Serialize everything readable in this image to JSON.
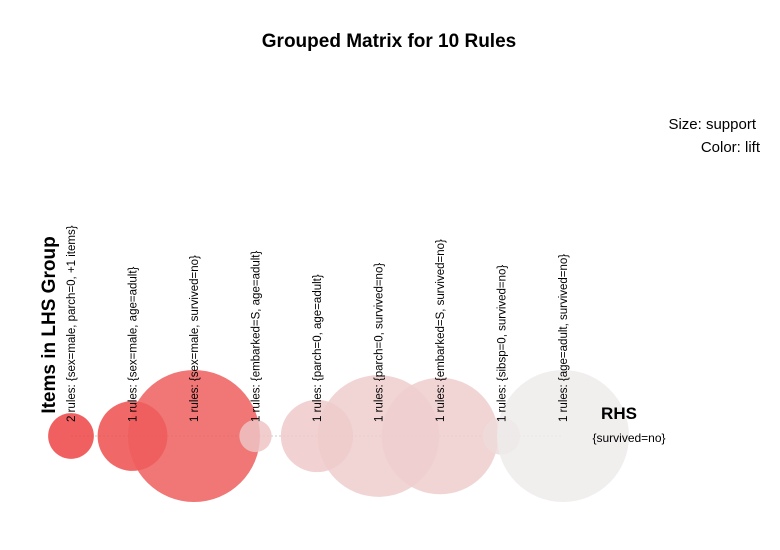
{
  "chart_data": {
    "type": "scatter",
    "title": "Grouped Matrix for 10 Rules",
    "size_legend": "Size: support",
    "color_legend": "Color: lift",
    "ylabel": "Items in LHS Group",
    "rhs_label": "RHS",
    "rhs_items": [
      "{survived=no}"
    ],
    "color_scale": {
      "low": "#eeeeee",
      "high": "#ee4444"
    },
    "groups": [
      {
        "label": "2 rules: {sex=male, parch=0, +1 items}",
        "support": 0.12,
        "lift": 1.0
      },
      {
        "label": "1 rules: {sex=male, age=adult}",
        "support": 0.28,
        "lift": 0.95
      },
      {
        "label": "1 rules: {sex=male, survived=no}",
        "support": 1.0,
        "lift": 0.85
      },
      {
        "label": "1 rules: {embarked=S, age=adult}",
        "support": 0.06,
        "lift": 0.25
      },
      {
        "label": "1 rules: {parch=0, age=adult}",
        "support": 0.3,
        "lift": 0.22
      },
      {
        "label": "1 rules: {parch=0, survived=no}",
        "support": 0.85,
        "lift": 0.2
      },
      {
        "label": "1 rules: {embarked=S, survived=no}",
        "support": 0.78,
        "lift": 0.19
      },
      {
        "label": "1 rules: {sibsp=0, survived=no}",
        "support": 0.08,
        "lift": 0.12
      },
      {
        "label": "1 rules: {age=adult, survived=no}",
        "support": 1.0,
        "lift": 0.02
      }
    ]
  }
}
